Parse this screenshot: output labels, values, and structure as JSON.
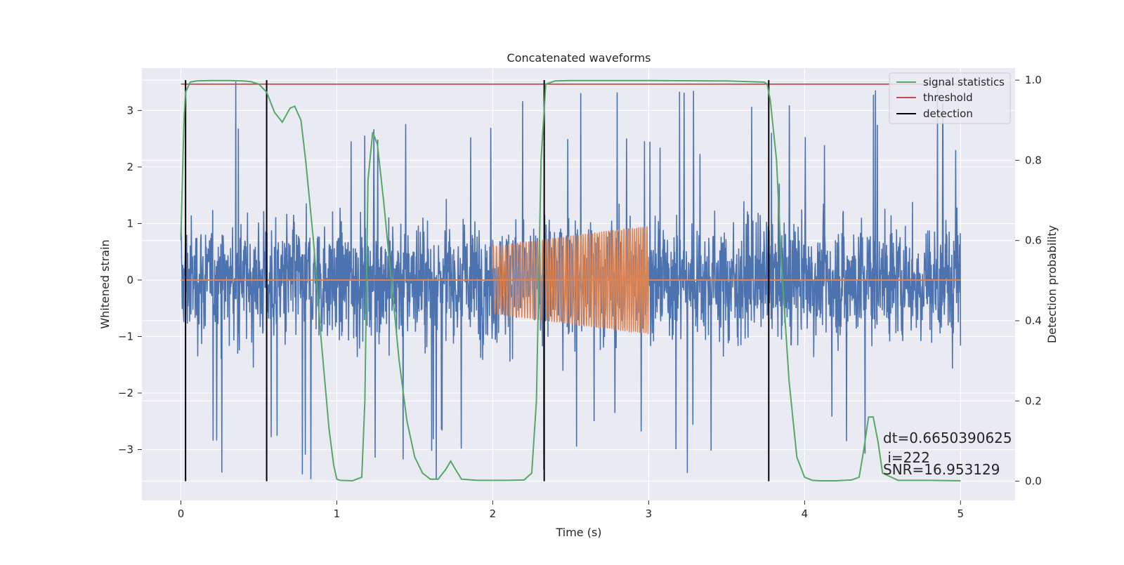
{
  "chart_data": {
    "type": "line",
    "title": "Concatenated waveforms",
    "xlabel": "Time (s)",
    "ylabel": "Whitened strain",
    "ylabel_right": "Detection probability",
    "xlim": [
      -0.25,
      5.35
    ],
    "ylim": [
      -3.9,
      3.75
    ],
    "ylim_right": [
      -0.048,
      1.03
    ],
    "x_ticks": [
      0,
      1,
      2,
      3,
      4,
      5
    ],
    "x_tick_labels": [
      "0",
      "1",
      "2",
      "3",
      "4",
      "5"
    ],
    "y_ticks": [
      -3,
      -2,
      -1,
      0,
      1,
      2,
      3
    ],
    "y_tick_labels": [
      "−3",
      "−2",
      "−1",
      "0",
      "1",
      "2",
      "3"
    ],
    "y_ticks_right": [
      0.0,
      0.2,
      0.4,
      0.6,
      0.8,
      1.0
    ],
    "y_tick_labels_right": [
      "0.0",
      "0.2",
      "0.4",
      "0.6",
      "0.8",
      "1.0"
    ],
    "grid": true,
    "legend_position": "top-right",
    "legend": [
      {
        "label": "signal statistics",
        "color": "#55a868"
      },
      {
        "label": "threshold",
        "color": "#c44e52"
      },
      {
        "label": "detection",
        "color": "#000000"
      }
    ],
    "colors": {
      "background": "#eaeaf2",
      "noise": "#4c72b0",
      "injected_signal": "#dd8452",
      "statistics": "#55a868",
      "threshold": "#c44e52",
      "detection": "#000000",
      "grid": "#ffffff"
    },
    "noise": {
      "x_start": 0,
      "x_end": 5,
      "typical_amplitude": 1.0,
      "peak_amplitude": 3.55
    },
    "injected_signal": {
      "segments": [
        {
          "x": [
            0,
            2
          ],
          "amplitude": 0
        },
        {
          "x": [
            2,
            3
          ],
          "amplitude_start": 0.6,
          "amplitude_end": 0.97
        },
        {
          "x": [
            3,
            5
          ],
          "amplitude": 0
        }
      ]
    },
    "threshold": {
      "value": 0.99,
      "x": [
        0,
        5
      ]
    },
    "detections": [
      0.03,
      0.55,
      2.33,
      3.77
    ],
    "series": [
      {
        "name": "signal statistics",
        "x": [
          0.0,
          0.02,
          0.03,
          0.06,
          0.1,
          0.2,
          0.3,
          0.4,
          0.45,
          0.5,
          0.55,
          0.6,
          0.65,
          0.7,
          0.73,
          0.77,
          0.8,
          0.85,
          0.9,
          0.95,
          0.98,
          1.0,
          1.02,
          1.1,
          1.16,
          1.18,
          1.2,
          1.23,
          1.26,
          1.3,
          1.35,
          1.4,
          1.45,
          1.5,
          1.55,
          1.6,
          1.65,
          1.7,
          1.73,
          1.76,
          1.8,
          1.9,
          2.0,
          2.1,
          2.2,
          2.25,
          2.28,
          2.31,
          2.34,
          2.4,
          2.5,
          3.0,
          3.5,
          3.74,
          3.76,
          3.78,
          3.82,
          3.85,
          3.9,
          3.95,
          4.0,
          4.05,
          4.1,
          4.2,
          4.3,
          4.35,
          4.38,
          4.41,
          4.44,
          4.47,
          4.5,
          4.6,
          4.8,
          5.0
        ],
        "y": [
          0.61,
          0.9,
          0.97,
          0.995,
          0.998,
          0.999,
          0.999,
          0.998,
          0.996,
          0.99,
          0.97,
          0.92,
          0.895,
          0.93,
          0.935,
          0.9,
          0.8,
          0.6,
          0.35,
          0.13,
          0.04,
          0.005,
          0.002,
          0.001,
          0.01,
          0.2,
          0.75,
          0.87,
          0.84,
          0.7,
          0.5,
          0.3,
          0.15,
          0.06,
          0.02,
          0.005,
          0.005,
          0.03,
          0.05,
          0.03,
          0.005,
          0.002,
          0.002,
          0.002,
          0.003,
          0.02,
          0.2,
          0.8,
          0.99,
          0.998,
          0.999,
          0.999,
          0.998,
          0.995,
          0.99,
          0.95,
          0.8,
          0.55,
          0.25,
          0.06,
          0.01,
          0.002,
          0.001,
          0.001,
          0.003,
          0.01,
          0.08,
          0.16,
          0.16,
          0.1,
          0.02,
          0.002,
          0.002,
          0.001
        ]
      }
    ],
    "annotations": [
      "dt=0.6650390625",
      " i=222",
      "SNR=16.953129"
    ]
  }
}
